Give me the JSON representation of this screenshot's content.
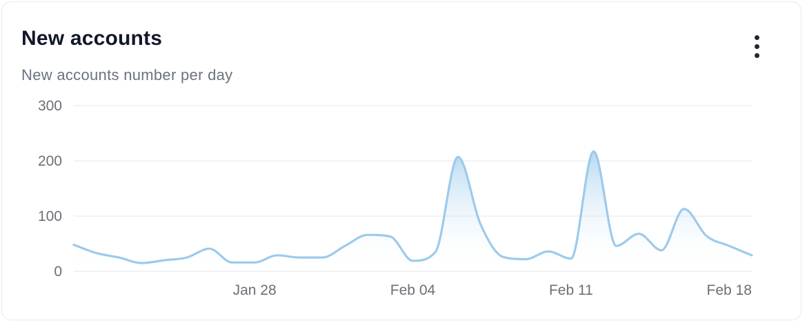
{
  "card": {
    "title": "New accounts",
    "subtitle": "New accounts number per day",
    "menu_icon": "more-vertical-icon"
  },
  "colors": {
    "line": "#9ccaec",
    "area_top": "#a9d2f1",
    "grid": "#e9ebee",
    "tick_text": "#6b6f76"
  },
  "chart_data": {
    "type": "area",
    "title": "",
    "xlabel": "",
    "ylabel": "",
    "ylim": [
      0,
      300
    ],
    "yticks": [
      0,
      100,
      200,
      300
    ],
    "grid": true,
    "x": [
      "2024-01-20",
      "2024-01-21",
      "2024-01-22",
      "2024-01-23",
      "2024-01-24",
      "2024-01-25",
      "2024-01-26",
      "2024-01-27",
      "2024-01-28",
      "2024-01-29",
      "2024-01-30",
      "2024-01-31",
      "2024-02-01",
      "2024-02-02",
      "2024-02-03",
      "2024-02-04",
      "2024-02-05",
      "2024-02-06",
      "2024-02-07",
      "2024-02-08",
      "2024-02-09",
      "2024-02-10",
      "2024-02-11",
      "2024-02-12",
      "2024-02-13",
      "2024-02-14",
      "2024-02-15",
      "2024-02-16",
      "2024-02-17",
      "2024-02-18",
      "2024-02-19"
    ],
    "xticks": [
      {
        "date": "2024-01-28",
        "label": "Jan 28"
      },
      {
        "date": "2024-02-04",
        "label": "Feb 04"
      },
      {
        "date": "2024-02-11",
        "label": "Feb 11"
      },
      {
        "date": "2024-02-18",
        "label": "Feb 18"
      }
    ],
    "series": [
      {
        "values": [
          48,
          33,
          25,
          15,
          20,
          25,
          41,
          16,
          16,
          29,
          25,
          25,
          46,
          66,
          63,
          19,
          35,
          207,
          85,
          26,
          22,
          36,
          23,
          217,
          46,
          68,
          38,
          113,
          64,
          46,
          29
        ]
      }
    ]
  }
}
